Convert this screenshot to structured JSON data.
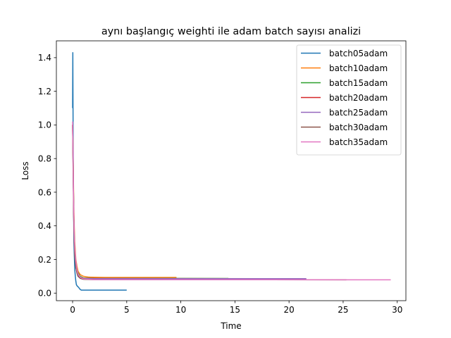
{
  "chart_data": {
    "type": "line",
    "title": "aynı başlangıç weighti ile adam batch sayısı analizi",
    "xlabel": "Time",
    "ylabel": "Loss",
    "xlim": [
      -1.5,
      30.8
    ],
    "ylim": [
      -0.045,
      1.5
    ],
    "xticks": [
      0,
      5,
      10,
      15,
      20,
      25,
      30
    ],
    "yticks": [
      0.0,
      0.2,
      0.4,
      0.6,
      0.8,
      1.0,
      1.2,
      1.4
    ],
    "xtick_labels": [
      "0",
      "5",
      "10",
      "15",
      "20",
      "25",
      "30"
    ],
    "ytick_labels": [
      "0.0",
      "0.2",
      "0.4",
      "0.6",
      "0.8",
      "1.0",
      "1.2",
      "1.4"
    ],
    "legend_position": "top-right",
    "series": [
      {
        "name": "batch05adam",
        "color": "#1f77b4",
        "points": [
          [
            0.0,
            1.1
          ],
          [
            0.02,
            1.43
          ],
          [
            0.05,
            0.9
          ],
          [
            0.08,
            0.6
          ],
          [
            0.12,
            0.3
          ],
          [
            0.16,
            0.22
          ],
          [
            0.2,
            0.14
          ],
          [
            0.25,
            0.1
          ],
          [
            0.3,
            0.07
          ],
          [
            0.35,
            0.05
          ],
          [
            0.45,
            0.04
          ],
          [
            0.55,
            0.035
          ],
          [
            0.6,
            0.03
          ],
          [
            0.7,
            0.022
          ],
          [
            0.8,
            0.018
          ],
          [
            5.0,
            0.018
          ]
        ]
      },
      {
        "name": "batch10adam",
        "color": "#ff7f0e",
        "points": [
          [
            0.0,
            1.0
          ],
          [
            0.05,
            0.8
          ],
          [
            0.1,
            0.55
          ],
          [
            0.15,
            0.4
          ],
          [
            0.2,
            0.3
          ],
          [
            0.3,
            0.2
          ],
          [
            0.4,
            0.16
          ],
          [
            0.5,
            0.13
          ],
          [
            0.7,
            0.11
          ],
          [
            1.0,
            0.1
          ],
          [
            1.5,
            0.095
          ],
          [
            3.0,
            0.093
          ],
          [
            9.6,
            0.093
          ]
        ]
      },
      {
        "name": "batch15adam",
        "color": "#2ca02c",
        "points": [
          [
            0.0,
            1.0
          ],
          [
            0.05,
            0.78
          ],
          [
            0.1,
            0.5
          ],
          [
            0.15,
            0.35
          ],
          [
            0.2,
            0.26
          ],
          [
            0.3,
            0.18
          ],
          [
            0.4,
            0.14
          ],
          [
            0.5,
            0.12
          ],
          [
            0.7,
            0.1
          ],
          [
            1.0,
            0.09
          ],
          [
            2.0,
            0.088
          ],
          [
            14.4,
            0.087
          ]
        ]
      },
      {
        "name": "batch20adam",
        "color": "#d62728",
        "points": [
          [
            0.0,
            1.0
          ],
          [
            0.05,
            0.76
          ],
          [
            0.1,
            0.48
          ],
          [
            0.15,
            0.33
          ],
          [
            0.2,
            0.24
          ],
          [
            0.3,
            0.17
          ],
          [
            0.4,
            0.13
          ],
          [
            0.5,
            0.11
          ],
          [
            0.7,
            0.095
          ],
          [
            1.0,
            0.088
          ],
          [
            2.0,
            0.087
          ],
          [
            19.0,
            0.086
          ]
        ]
      },
      {
        "name": "batch25adam",
        "color": "#9467bd",
        "points": [
          [
            0.0,
            1.0
          ],
          [
            0.05,
            0.74
          ],
          [
            0.1,
            0.46
          ],
          [
            0.15,
            0.32
          ],
          [
            0.2,
            0.23
          ],
          [
            0.3,
            0.16
          ],
          [
            0.4,
            0.125
          ],
          [
            0.5,
            0.105
          ],
          [
            0.7,
            0.092
          ],
          [
            1.0,
            0.087
          ],
          [
            2.0,
            0.086
          ],
          [
            21.6,
            0.086
          ]
        ]
      },
      {
        "name": "batch30adam",
        "color": "#8c564b",
        "points": [
          [
            0.0,
            1.0
          ],
          [
            0.05,
            0.72
          ],
          [
            0.1,
            0.45
          ],
          [
            0.15,
            0.31
          ],
          [
            0.2,
            0.22
          ],
          [
            0.3,
            0.15
          ],
          [
            0.4,
            0.12
          ],
          [
            0.5,
            0.1
          ],
          [
            0.7,
            0.088
          ],
          [
            1.0,
            0.082
          ],
          [
            2.0,
            0.08
          ],
          [
            25.3,
            0.079
          ]
        ]
      },
      {
        "name": "batch35adam",
        "color": "#e377c2",
        "points": [
          [
            0.0,
            1.02
          ],
          [
            0.04,
            0.85
          ],
          [
            0.08,
            0.6
          ],
          [
            0.12,
            0.45
          ],
          [
            0.16,
            0.34
          ],
          [
            0.2,
            0.27
          ],
          [
            0.3,
            0.19
          ],
          [
            0.4,
            0.14
          ],
          [
            0.5,
            0.115
          ],
          [
            0.7,
            0.095
          ],
          [
            1.0,
            0.085
          ],
          [
            2.0,
            0.08
          ],
          [
            29.4,
            0.079
          ]
        ]
      }
    ]
  }
}
